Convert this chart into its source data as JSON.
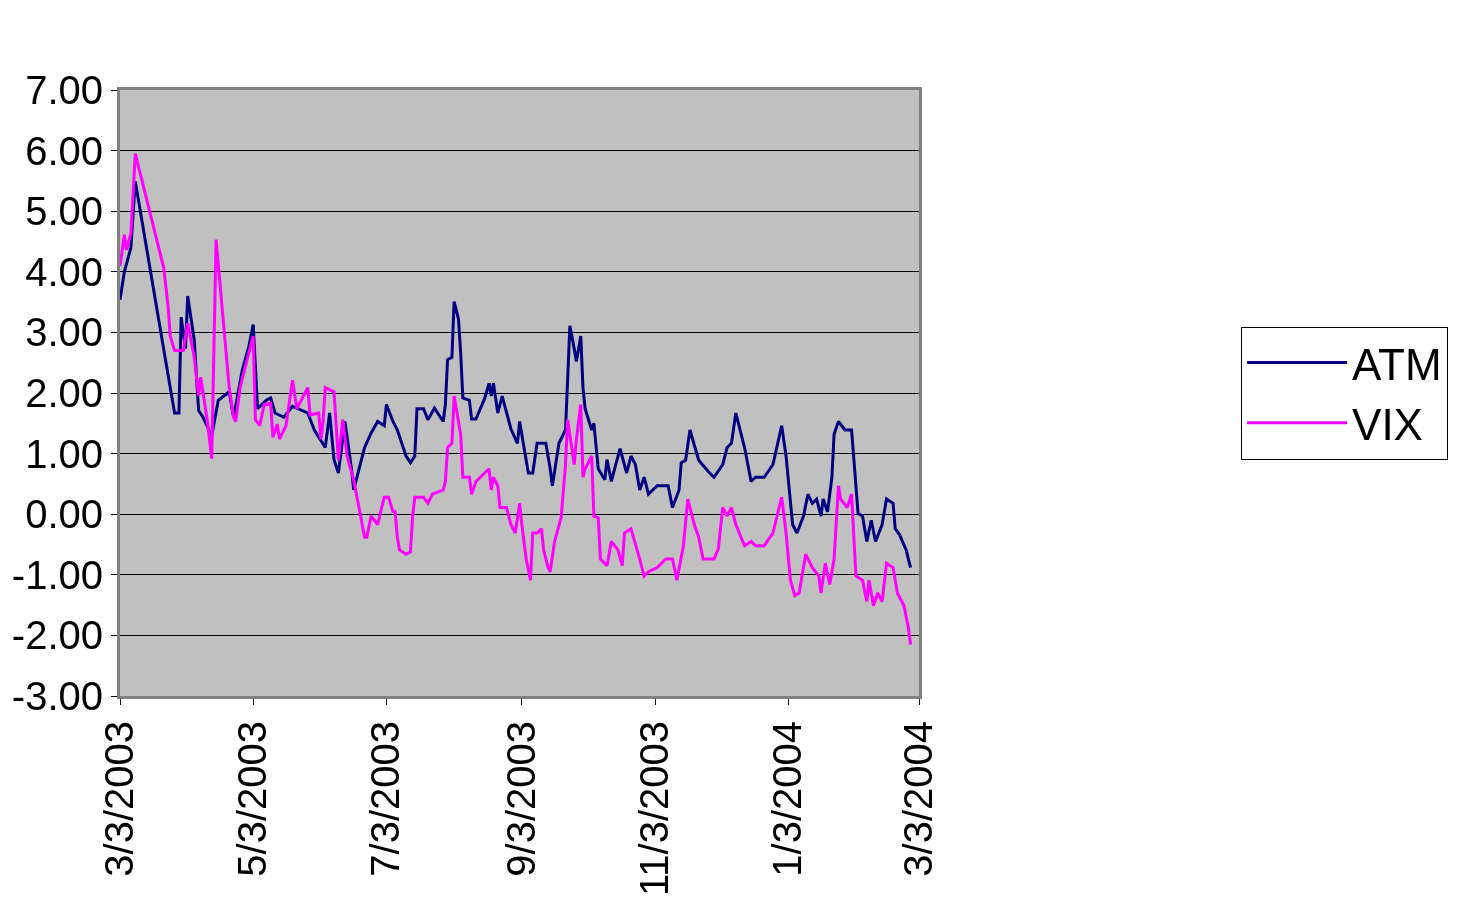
{
  "chart_data": {
    "type": "line",
    "xlim": [
      "2003-03-03",
      "2004-03-03"
    ],
    "xticks": [
      {
        "value": "2003-03-03",
        "label": "3/3/2003"
      },
      {
        "value": "2003-05-03",
        "label": "5/3/2003"
      },
      {
        "value": "2003-07-03",
        "label": "7/3/2003"
      },
      {
        "value": "2003-09-03",
        "label": "9/3/2003"
      },
      {
        "value": "2003-11-03",
        "label": "11/3/2003"
      },
      {
        "value": "2004-01-03",
        "label": "1/3/2004"
      },
      {
        "value": "2004-03-03",
        "label": "3/3/2004"
      }
    ],
    "ylim": [
      -3,
      7
    ],
    "yticks": [
      {
        "value": -3,
        "label": "-3.00"
      },
      {
        "value": -2,
        "label": "-2.00"
      },
      {
        "value": -1,
        "label": "-1.00"
      },
      {
        "value": 0,
        "label": "0.00"
      },
      {
        "value": 1,
        "label": "1.00"
      },
      {
        "value": 2,
        "label": "2.00"
      },
      {
        "value": 3,
        "label": "3.00"
      },
      {
        "value": 4,
        "label": "4.00"
      },
      {
        "value": 5,
        "label": "5.00"
      },
      {
        "value": 6,
        "label": "6.00"
      },
      {
        "value": 7,
        "label": "7.00"
      }
    ],
    "grid": "y",
    "legend": "right",
    "marker": "none",
    "line_style": "solid",
    "series": [
      {
        "name": "ATM",
        "color": "#000080",
        "x": [
          "2003-03-03",
          "2003-03-05",
          "2003-03-08",
          "2003-03-10",
          "2003-03-25",
          "2003-03-27",
          "2003-03-28",
          "2003-03-30",
          "2003-03-31",
          "2003-04-02",
          "2003-04-03",
          "2003-04-06",
          "2003-04-08",
          "2003-04-10",
          "2003-04-14",
          "2003-04-17",
          "2003-04-22",
          "2003-04-24",
          "2003-04-28",
          "2003-05-01",
          "2003-05-03",
          "2003-05-05",
          "2003-05-09",
          "2003-05-11",
          "2003-05-13",
          "2003-05-17",
          "2003-05-21",
          "2003-05-28",
          "2003-05-31",
          "2003-06-05",
          "2003-06-07",
          "2003-06-09",
          "2003-06-11",
          "2003-06-14",
          "2003-06-17",
          "2003-06-18",
          "2003-06-23",
          "2003-06-26",
          "2003-06-29",
          "2003-07-02",
          "2003-07-03",
          "2003-07-06",
          "2003-07-08",
          "2003-07-12",
          "2003-07-14",
          "2003-07-16",
          "2003-07-17",
          "2003-07-20",
          "2003-07-22",
          "2003-07-25",
          "2003-07-29",
          "2003-07-30",
          "2003-07-31",
          "2003-08-02",
          "2003-08-03",
          "2003-08-05",
          "2003-08-06",
          "2003-08-07",
          "2003-08-10",
          "2003-08-11",
          "2003-08-13",
          "2003-08-17",
          "2003-08-19",
          "2003-08-20",
          "2003-08-21",
          "2003-08-23",
          "2003-08-25",
          "2003-08-29",
          "2003-09-01",
          "2003-09-02",
          "2003-09-04",
          "2003-09-06",
          "2003-09-08",
          "2003-09-10",
          "2003-09-14",
          "2003-09-16",
          "2003-09-17",
          "2003-09-20",
          "2003-09-23",
          "2003-09-24",
          "2003-09-25",
          "2003-09-27",
          "2003-09-28",
          "2003-09-30",
          "2003-10-01",
          "2003-10-02",
          "2003-10-05",
          "2003-10-06",
          "2003-10-08",
          "2003-10-11",
          "2003-10-12",
          "2003-10-14",
          "2003-10-16",
          "2003-10-18",
          "2003-10-21",
          "2003-10-23",
          "2003-10-25",
          "2003-10-27",
          "2003-10-29",
          "2003-10-31",
          "2003-11-04",
          "2003-11-09",
          "2003-11-11",
          "2003-11-14",
          "2003-11-15",
          "2003-11-17",
          "2003-11-19",
          "2003-11-23",
          "2003-11-28",
          "2003-11-30",
          "2003-12-04",
          "2003-12-06",
          "2003-12-08",
          "2003-12-10",
          "2003-12-14",
          "2003-12-17",
          "2003-12-19",
          "2003-12-23",
          "2003-12-27",
          "2003-12-31",
          "2004-01-02",
          "2004-01-05",
          "2004-01-07",
          "2004-01-10",
          "2004-01-12",
          "2004-01-14",
          "2004-01-16",
          "2004-01-18",
          "2004-01-19",
          "2004-01-21",
          "2004-01-23",
          "2004-01-24",
          "2004-01-26",
          "2004-01-29",
          "2004-02-01",
          "2004-02-04",
          "2004-02-06",
          "2004-02-08",
          "2004-02-10",
          "2004-02-12",
          "2004-02-15",
          "2004-02-17",
          "2004-02-20",
          "2004-02-21",
          "2004-02-23",
          "2004-02-26",
          "2004-02-28"
        ],
        "values": [
          3.54,
          4.0,
          4.4,
          5.49,
          2.3,
          1.88,
          1.67,
          1.67,
          3.25,
          2.73,
          3.6,
          2.87,
          1.71,
          1.6,
          1.29,
          1.88,
          2.02,
          1.6,
          2.38,
          2.77,
          3.13,
          1.74,
          1.88,
          1.92,
          1.67,
          1.6,
          1.78,
          1.67,
          1.39,
          1.1,
          1.67,
          0.9,
          0.68,
          1.53,
          0.75,
          0.4,
          1.1,
          1.34,
          1.53,
          1.46,
          1.81,
          1.53,
          1.39,
          0.96,
          0.85,
          0.96,
          1.74,
          1.74,
          1.56,
          1.75,
          1.53,
          1.81,
          2.55,
          2.59,
          3.51,
          3.22,
          2.66,
          1.92,
          1.88,
          1.57,
          1.57,
          1.91,
          2.16,
          1.95,
          2.16,
          1.67,
          1.95,
          1.41,
          1.17,
          1.53,
          1.1,
          0.68,
          0.68,
          1.17,
          1.17,
          0.75,
          0.47,
          1.17,
          1.39,
          2.23,
          3.11,
          2.73,
          2.52,
          2.94,
          2.09,
          1.74,
          1.39,
          1.5,
          0.75,
          0.57,
          0.9,
          0.54,
          0.82,
          1.08,
          0.68,
          0.96,
          0.82,
          0.4,
          0.61,
          0.33,
          0.47,
          0.47,
          0.11,
          0.4,
          0.85,
          0.89,
          1.39,
          0.89,
          0.68,
          0.61,
          0.82,
          1.1,
          1.17,
          1.67,
          1.1,
          0.54,
          0.61,
          0.61,
          0.82,
          1.46,
          0.96,
          -0.17,
          -0.31,
          -0.03,
          0.33,
          0.18,
          0.25,
          -0.03,
          0.25,
          0.04,
          0.61,
          1.32,
          1.53,
          1.39,
          1.39,
          0.01,
          -0.03,
          -0.45,
          -0.1,
          -0.45,
          -0.17,
          0.25,
          0.18,
          -0.24,
          -0.34,
          -0.59,
          -0.88
        ]
      },
      {
        "name": "VIX",
        "color": "#ff00ff",
        "x": [
          "2003-03-03",
          "2003-03-05",
          "2003-03-06",
          "2003-03-08",
          "2003-03-10",
          "2003-03-23",
          "2003-03-25",
          "2003-03-26",
          "2003-03-28",
          "2003-04-01",
          "2003-04-02",
          "2003-04-03",
          "2003-04-06",
          "2003-04-08",
          "2003-04-09",
          "2003-04-12",
          "2003-04-14",
          "2003-04-16",
          "2003-04-22",
          "2003-04-24",
          "2003-04-25",
          "2003-04-27",
          "2003-04-30",
          "2003-05-01",
          "2003-05-03",
          "2003-05-04",
          "2003-05-06",
          "2003-05-08",
          "2003-05-11",
          "2003-05-12",
          "2003-05-14",
          "2003-05-15",
          "2003-05-18",
          "2003-05-21",
          "2003-05-23",
          "2003-05-28",
          "2003-05-29",
          "2003-06-02",
          "2003-06-03",
          "2003-06-04",
          "2003-06-05",
          "2003-06-09",
          "2003-06-11",
          "2003-06-13",
          "2003-06-15",
          "2003-06-16",
          "2003-06-18",
          "2003-06-23",
          "2003-06-24",
          "2003-06-26",
          "2003-06-29",
          "2003-07-02",
          "2003-07-04",
          "2003-07-06",
          "2003-07-07",
          "2003-07-08",
          "2003-07-09",
          "2003-07-12",
          "2003-07-14",
          "2003-07-15",
          "2003-07-16",
          "2003-07-20",
          "2003-07-22",
          "2003-07-24",
          "2003-07-29",
          "2003-07-30",
          "2003-07-31",
          "2003-08-02",
          "2003-08-03",
          "2003-08-06",
          "2003-08-07",
          "2003-08-10",
          "2003-08-11",
          "2003-08-13",
          "2003-08-17",
          "2003-08-19",
          "2003-08-20",
          "2003-08-21",
          "2003-08-23",
          "2003-08-24",
          "2003-08-27",
          "2003-08-29",
          "2003-08-31",
          "2003-09-02",
          "2003-09-03",
          "2003-09-05",
          "2003-09-07",
          "2003-09-08",
          "2003-09-10",
          "2003-09-12",
          "2003-09-13",
          "2003-09-15",
          "2003-09-16",
          "2003-09-18",
          "2003-09-21",
          "2003-09-23",
          "2003-09-24",
          "2003-09-27",
          "2003-09-28",
          "2003-09-30",
          "2003-10-01",
          "2003-10-02",
          "2003-10-05",
          "2003-10-06",
          "2003-10-08",
          "2003-10-09",
          "2003-10-12",
          "2003-10-14",
          "2003-10-17",
          "2003-10-19",
          "2003-10-20",
          "2003-10-23",
          "2003-10-27",
          "2003-10-29",
          "2003-10-31",
          "2003-11-04",
          "2003-11-08",
          "2003-11-11",
          "2003-11-13",
          "2003-11-16",
          "2003-11-18",
          "2003-11-21",
          "2003-11-23",
          "2003-11-25",
          "2003-11-30",
          "2003-12-02",
          "2003-12-04",
          "2003-12-06",
          "2003-12-08",
          "2003-12-10",
          "2003-12-14",
          "2003-12-17",
          "2003-12-19",
          "2003-12-23",
          "2003-12-27",
          "2003-12-31",
          "2004-01-02",
          "2004-01-04",
          "2004-01-06",
          "2004-01-08",
          "2004-01-11",
          "2004-01-14",
          "2004-01-17",
          "2004-01-18",
          "2004-01-20",
          "2004-01-22",
          "2004-01-24",
          "2004-01-26",
          "2004-01-27",
          "2004-01-30",
          "2004-02-01",
          "2004-02-03",
          "2004-02-06",
          "2004-02-08",
          "2004-02-09",
          "2004-02-11",
          "2004-02-13",
          "2004-02-15",
          "2004-02-17",
          "2004-02-20",
          "2004-02-22",
          "2004-02-25",
          "2004-02-27",
          "2004-02-28"
        ],
        "values": [
          4.1,
          4.61,
          4.36,
          4.64,
          5.95,
          4.07,
          3.44,
          2.94,
          2.7,
          2.7,
          2.94,
          3.15,
          2.59,
          1.95,
          2.26,
          1.53,
          0.92,
          4.53,
          2.09,
          1.6,
          1.53,
          2.09,
          2.52,
          2.66,
          2.94,
          1.56,
          1.46,
          1.81,
          1.83,
          1.27,
          1.49,
          1.24,
          1.46,
          2.21,
          1.74,
          2.09,
          1.64,
          1.67,
          1.24,
          1.53,
          2.09,
          2.02,
          0.89,
          1.56,
          0.96,
          0.82,
          0.57,
          -0.38,
          -0.38,
          -0.03,
          -0.17,
          0.28,
          0.28,
          0.04,
          0.04,
          -0.38,
          -0.59,
          -0.66,
          -0.62,
          -0.03,
          0.28,
          0.28,
          0.18,
          0.33,
          0.4,
          0.54,
          1.1,
          1.17,
          1.95,
          1.32,
          0.61,
          0.61,
          0.33,
          0.54,
          0.68,
          0.75,
          0.4,
          0.61,
          0.47,
          0.11,
          0.11,
          -0.17,
          -0.31,
          0.18,
          -0.17,
          -0.74,
          -1.09,
          -0.31,
          -0.31,
          -0.24,
          -0.59,
          -0.88,
          -0.95,
          -0.45,
          -0.06,
          0.82,
          1.56,
          0.82,
          1.24,
          1.81,
          0.61,
          0.75,
          0.96,
          -0.03,
          -0.06,
          -0.74,
          -0.85,
          -0.45,
          -0.59,
          -0.85,
          -0.31,
          -0.24,
          -0.74,
          -1.02,
          -0.95,
          -0.88,
          -0.74,
          -0.74,
          -1.09,
          -0.52,
          0.25,
          -0.17,
          -0.38,
          -0.74,
          -0.74,
          -0.57,
          0.11,
          -0.03,
          0.11,
          -0.17,
          -0.52,
          -0.45,
          -0.52,
          -0.52,
          -0.31,
          0.28,
          -0.31,
          -1.09,
          -1.34,
          -1.3,
          -0.66,
          -0.88,
          -1.02,
          -1.3,
          -0.81,
          -1.16,
          -0.74,
          0.47,
          0.25,
          0.11,
          0.33,
          -1.02,
          -1.09,
          -1.44,
          -1.09,
          -1.51,
          -1.3,
          -1.44,
          -0.81,
          -0.88,
          -1.3,
          -1.51,
          -1.87,
          -2.15
        ]
      }
    ]
  }
}
